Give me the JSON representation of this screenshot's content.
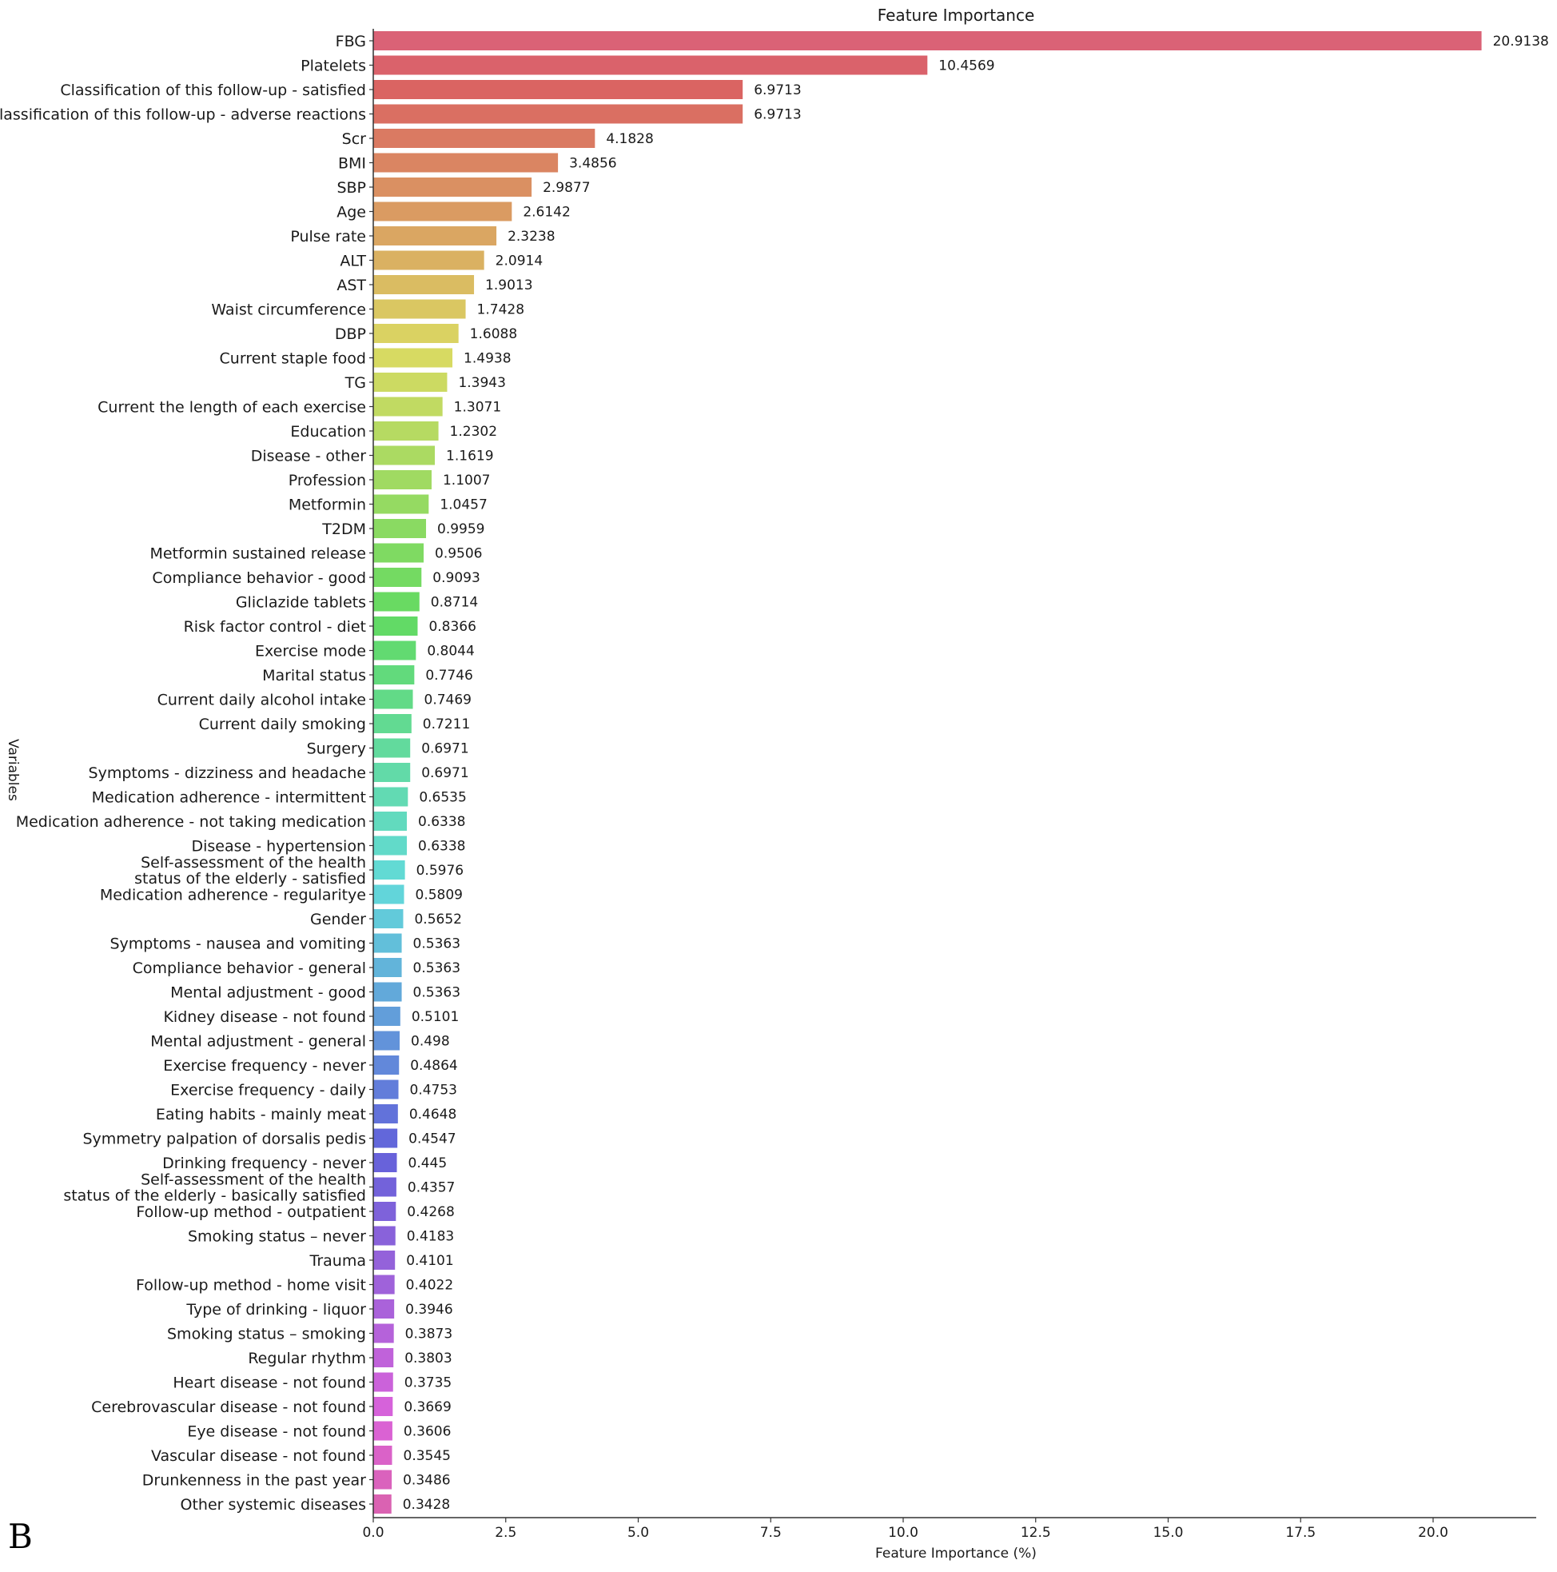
{
  "panel_letter": "B",
  "chart_data": {
    "type": "bar",
    "orientation": "horizontal",
    "title": "Feature Importance",
    "xlabel": "Feature Importance (%)",
    "ylabel": "Variables",
    "xlim": [
      0,
      22
    ],
    "xticks": [
      "0.0",
      "2.5",
      "5.0",
      "7.5",
      "10.0",
      "12.5",
      "15.0",
      "17.5",
      "20.0"
    ],
    "grid": false,
    "palette": "husl",
    "categories": [
      "FBG",
      "Platelets",
      "Classification of this follow-up - satisfied",
      "Classification of this follow-up - adverse reactions",
      "Scr",
      "BMI",
      "SBP",
      "Age",
      "Pulse rate",
      "ALT",
      "AST",
      "Waist circumference",
      "DBP",
      "Current staple food",
      "TG",
      "Current the length of each exercise",
      "Education",
      "Disease - other",
      "Profession",
      "Metformin",
      "T2DM",
      "Metformin sustained release",
      "Compliance behavior - good",
      "Gliclazide tablets",
      "Risk factor control - diet",
      "Exercise mode",
      "Marital status",
      "Current daily alcohol intake",
      "Current daily smoking",
      "Surgery",
      "Symptoms - dizziness and headache",
      "Medication adherence - intermittent",
      "Medication adherence - not taking medication",
      "Disease - hypertension",
      "Self-assessment of the health\nstatus of the elderly - satisfied",
      "Medication adherence - regularitye",
      "Gender",
      "Symptoms - nausea and vomiting",
      "Compliance behavior - general",
      "Mental adjustment - good",
      "Kidney disease - not found",
      "Mental adjustment - general",
      "Exercise frequency - never",
      "Exercise frequency - daily",
      "Eating habits - mainly meat",
      "Symmetry palpation of dorsalis pedis",
      "Drinking frequency - never",
      "Self-assessment of the health\nstatus of the elderly - basically satisfied",
      "Follow-up method - outpatient",
      "Smoking status – never",
      "Trauma",
      "Follow-up method - home visit",
      "Type of drinking - liquor",
      "Smoking status – smoking",
      "Regular rhythm",
      "Heart disease - not found",
      "Cerebrovascular disease - not found",
      "Eye disease - not found",
      "Vascular disease - not found",
      "Drunkenness in the past year",
      "Other systemic diseases"
    ],
    "values": [
      20.9138,
      10.4569,
      6.9713,
      6.9713,
      4.1828,
      3.4856,
      2.9877,
      2.6142,
      2.3238,
      2.0914,
      1.9013,
      1.7428,
      1.6088,
      1.4938,
      1.3943,
      1.3071,
      1.2302,
      1.1619,
      1.1007,
      1.0457,
      0.9959,
      0.9506,
      0.9093,
      0.8714,
      0.8366,
      0.8044,
      0.7746,
      0.7469,
      0.7211,
      0.6971,
      0.6971,
      0.6535,
      0.6338,
      0.6338,
      0.5976,
      0.5809,
      0.5652,
      0.5363,
      0.5363,
      0.5363,
      0.5101,
      0.498,
      0.4864,
      0.4753,
      0.4648,
      0.4547,
      0.445,
      0.4357,
      0.4268,
      0.4183,
      0.4101,
      0.4022,
      0.3946,
      0.3873,
      0.3803,
      0.3735,
      0.3669,
      0.3606,
      0.3545,
      0.3486,
      0.3428
    ],
    "value_labels": [
      "20.9138",
      "10.4569",
      "6.9713",
      "6.9713",
      "4.1828",
      "3.4856",
      "2.9877",
      "2.6142",
      "2.3238",
      "2.0914",
      "1.9013",
      "1.7428",
      "1.6088",
      "1.4938",
      "1.3943",
      "1.3071",
      "1.2302",
      "1.1619",
      "1.1007",
      "1.0457",
      "0.9959",
      "0.9506",
      "0.9093",
      "0.8714",
      "0.8366",
      "0.8044",
      "0.7746",
      "0.7469",
      "0.7211",
      "0.6971",
      "0.6971",
      "0.6535",
      "0.6338",
      "0.6338",
      "0.5976",
      "0.5809",
      "0.5652",
      "0.5363",
      "0.5363",
      "0.5363",
      "0.5101",
      "0.498",
      "0.4864",
      "0.4753",
      "0.4648",
      "0.4547",
      "0.445",
      "0.4357",
      "0.4268",
      "0.4183",
      "0.4101",
      "0.4022",
      "0.3946",
      "0.3873",
      "0.3803",
      "0.3735",
      "0.3669",
      "0.3606",
      "0.3545",
      "0.3486",
      "0.3428"
    ]
  }
}
